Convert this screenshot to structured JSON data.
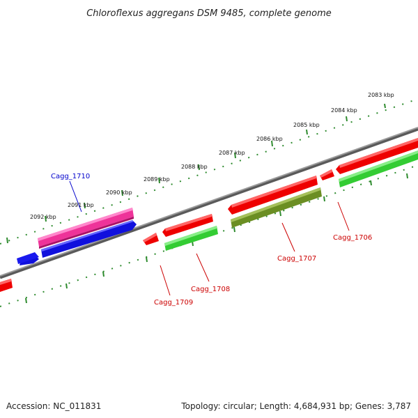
{
  "title": "Chloroflexus aggregans DSM 9485, complete genome",
  "footer": {
    "accession": "Accession: NC_011831",
    "summary": "Topology: circular; Length: 4,684,931 bp; Genes: 3,787"
  },
  "colors": {
    "backbone": "#7a7a7a",
    "ruler_ticks": "#2e8b2e",
    "label_red": "#cc0000",
    "label_blue": "#0000cc",
    "gene_red": "#ee0000",
    "gene_blue": "#1010dd",
    "gene_pink": "#ee3399",
    "gene_green": "#33cc33",
    "gene_olive": "#6b8e23"
  },
  "ruler_labels": [
    "2083 kbp",
    "2084 kbp",
    "2085 kbp",
    "2086 kbp",
    "2087 kbp",
    "2088 kbp",
    "2089 kbp",
    "2090 kbp",
    "2091 kbp",
    "2092 kbp"
  ],
  "gene_labels": {
    "cagg_1710": "Cagg_1710",
    "cagg_1709": "Cagg_1709",
    "cagg_1708": "Cagg_1708",
    "cagg_1707": "Cagg_1707",
    "cagg_1706": "Cagg_1706"
  }
}
